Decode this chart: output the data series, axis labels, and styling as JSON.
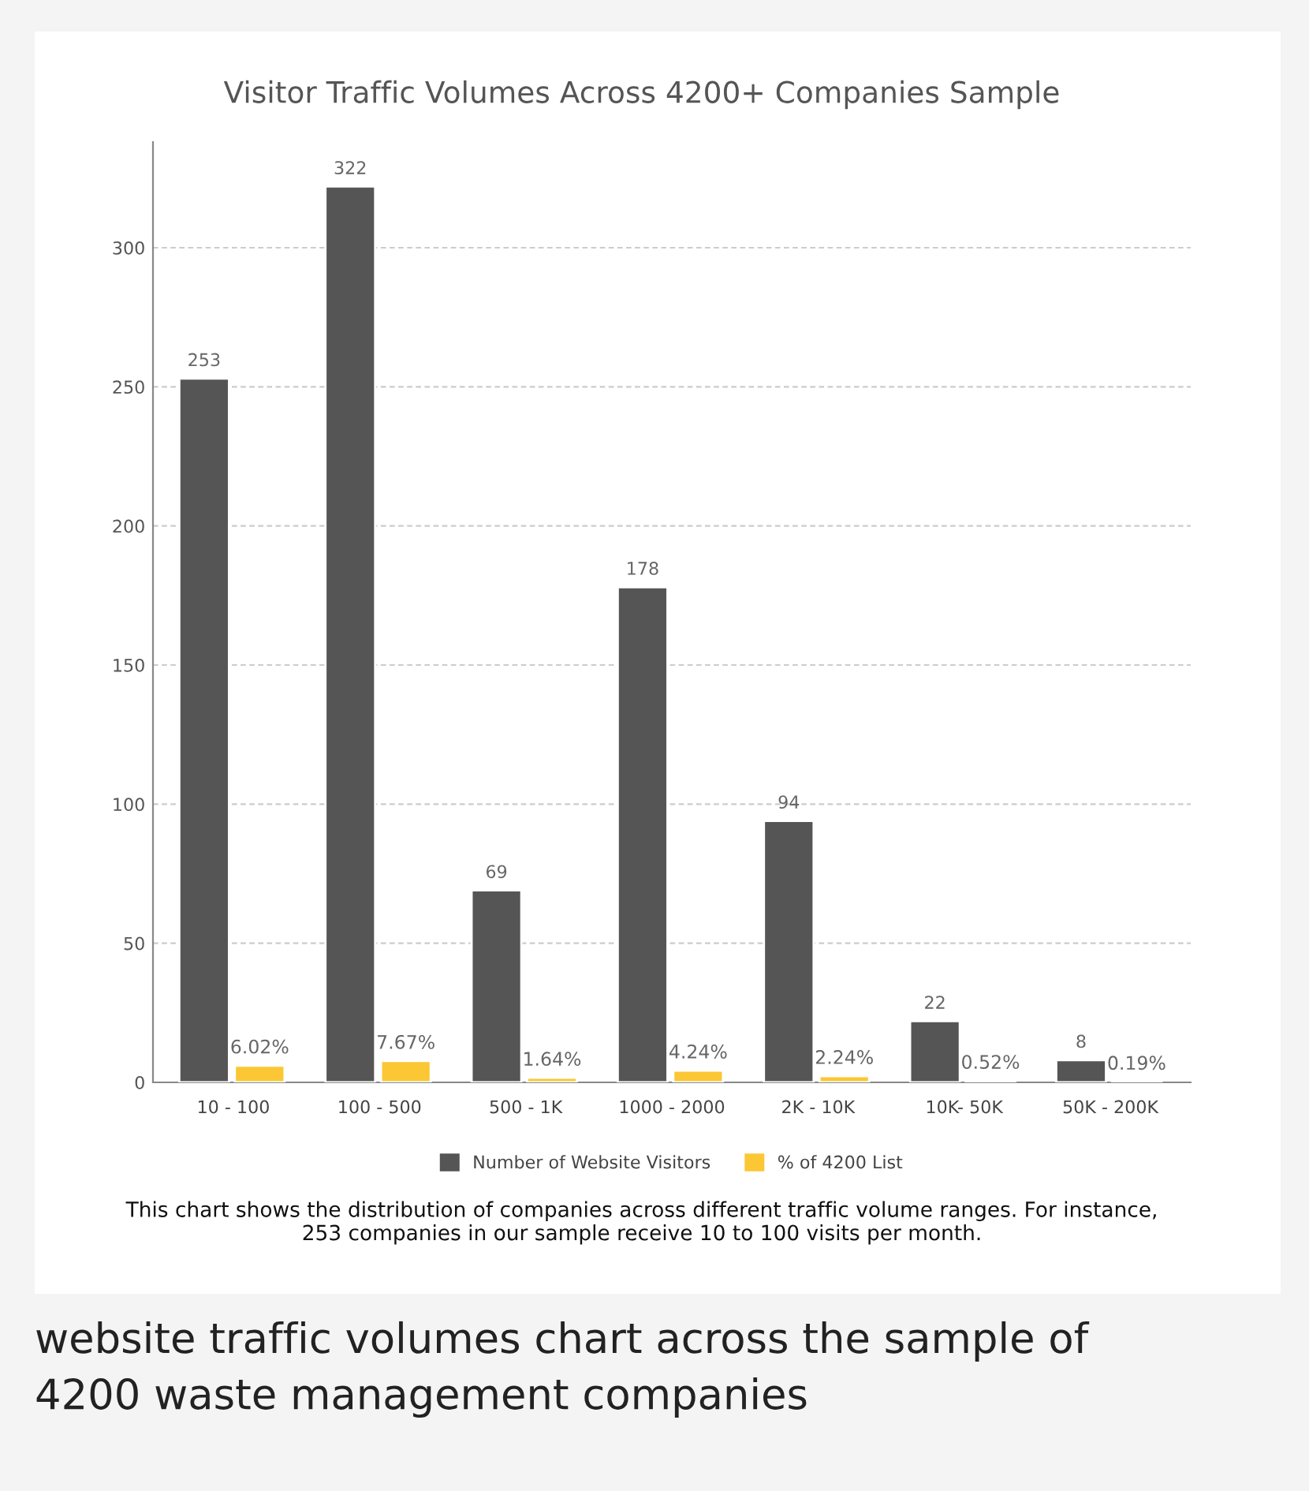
{
  "chart_data": {
    "type": "bar",
    "title": "Visitor Traffic Volumes Across 4200+ Companies Sample",
    "categories": [
      "10 - 100",
      "100 - 500",
      "500 - 1K",
      "1000 - 2000",
      "2K - 10K",
      "10K- 50K",
      "50K - 200K"
    ],
    "series": [
      {
        "name": "Number of Website Visitors",
        "color": "#555555",
        "values": [
          253,
          322,
          69,
          178,
          94,
          22,
          8
        ],
        "value_labels": [
          "253",
          "322",
          "69",
          "178",
          "94",
          "22",
          "8"
        ]
      },
      {
        "name": "% of 4200 List",
        "color": "#fcc735",
        "values": [
          6.02,
          7.67,
          1.64,
          4.24,
          2.24,
          0.52,
          0.19
        ],
        "value_labels": [
          "6.02%",
          "7.67%",
          "1.64%",
          "4.24%",
          "2.24%",
          "0.52%",
          "0.19%"
        ]
      }
    ],
    "ylim": [
      0,
      338
    ],
    "yticks": [
      0,
      50,
      100,
      150,
      200,
      250,
      300
    ],
    "grid": "y",
    "legend": "bottom",
    "annotations": [
      "This chart shows the distribution of companies across different traffic volume ranges. For instance,\n253 companies in our sample receive 10 to 100 visits per month.",
      "website traffic volumes chart across the sample of\n4200 waste management companies"
    ]
  }
}
